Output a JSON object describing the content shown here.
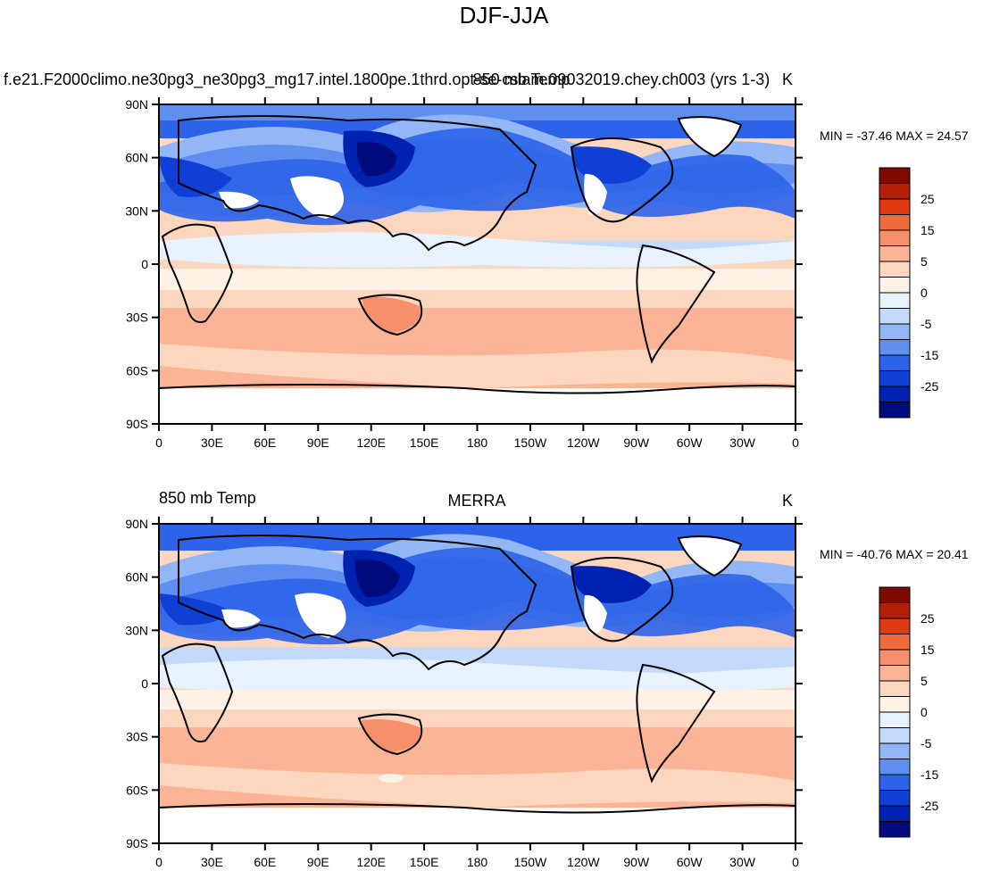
{
  "page_title": "DJF-JJA",
  "colors": {
    "land_void": "#ffffff",
    "coastline": "#000000",
    "scale": [
      "#000c7d",
      "#0022b0",
      "#0f3fd4",
      "#2c63e8",
      "#5e8ff0",
      "#92b6f6",
      "#c3dafa",
      "#e8f2fd",
      "#fff1e6",
      "#fdd6c0",
      "#fbb596",
      "#f6906c",
      "#ef6a3c",
      "#e03a14",
      "#b3200a",
      "#7f0a00"
    ]
  },
  "panels": [
    {
      "left_title": "f.e21.F2000climo.ne30pg3_ne30pg3_mg17.intel.1800pe.1thrd.opt-se-cslam.09032019.chey.ch003 (yrs 1-3)",
      "center_title": "850 mb Temp",
      "right_title": "K",
      "minmax": "MIN = -37.46 MAX =  24.57"
    },
    {
      "left_title": "850 mb Temp",
      "center_title": "MERRA",
      "right_title": "K",
      "minmax": "MIN = -40.76 MAX =  20.41"
    }
  ],
  "axes": {
    "y_ticks": [
      "90N",
      "60N",
      "30N",
      "0",
      "30S",
      "60S",
      "90S"
    ],
    "x_ticks": [
      "0",
      "30E",
      "60E",
      "90E",
      "120E",
      "150E",
      "180",
      "150W",
      "120W",
      "90W",
      "60W",
      "30W",
      "0"
    ]
  },
  "colorbar": {
    "labels": [
      "25",
      "15",
      "5",
      "0",
      "-5",
      "-15",
      "-25"
    ]
  },
  "chart_data": {
    "type": "heatmap",
    "title": "DJF-JJA",
    "variable": "850 mb Temp",
    "units": "K",
    "lon_range": [
      0,
      360
    ],
    "lat_range": [
      -90,
      90
    ],
    "contour_levels": [
      -30,
      -25,
      -20,
      -15,
      -10,
      -5,
      -2,
      0,
      2,
      5,
      10,
      15,
      20,
      25,
      30
    ],
    "panels": [
      {
        "name": "f.e21.F2000climo.ne30pg3_ne30pg3_mg17.intel.1800pe.1thrd.opt-se-cslam.09032019.chey.ch003 (yrs 1-3)",
        "min": -37.46,
        "max": 24.57
      },
      {
        "name": "MERRA",
        "min": -40.76,
        "max": 20.41
      }
    ]
  }
}
